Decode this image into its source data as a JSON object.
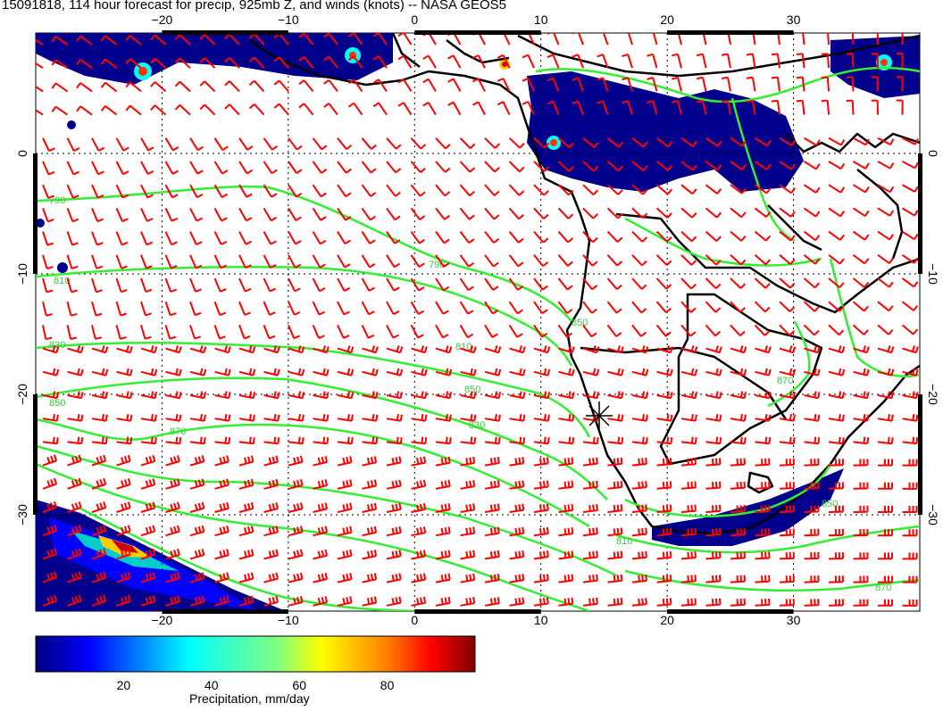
{
  "title": "15091818, 114 hour forecast for precip, 925mb Z, and winds (knots) -- NASA GEOS5",
  "map": {
    "lon_range": [
      -30,
      40
    ],
    "lat_range": [
      -38,
      10
    ],
    "x_ticks": [
      "−20",
      "−10",
      "0",
      "10",
      "20",
      "30"
    ],
    "y_ticks": [
      "0",
      "−10",
      "−20",
      "−30"
    ],
    "gridlines": "dotted",
    "contour_labels": [
      "790",
      "810",
      "830",
      "850",
      "870",
      "850",
      "830",
      "810",
      "790",
      "870",
      "850",
      "810",
      "850",
      "870"
    ],
    "colors": {
      "wind_barbs": "#ff0000",
      "contours": "#33ee33",
      "coastline": "#000000",
      "precip_low": "#000080",
      "precip_high": "#800000"
    }
  },
  "colorbar": {
    "ticks": [
      "20",
      "40",
      "60",
      "80"
    ],
    "caption": "Precipitation, mm/day",
    "range": [
      0,
      100
    ]
  }
}
